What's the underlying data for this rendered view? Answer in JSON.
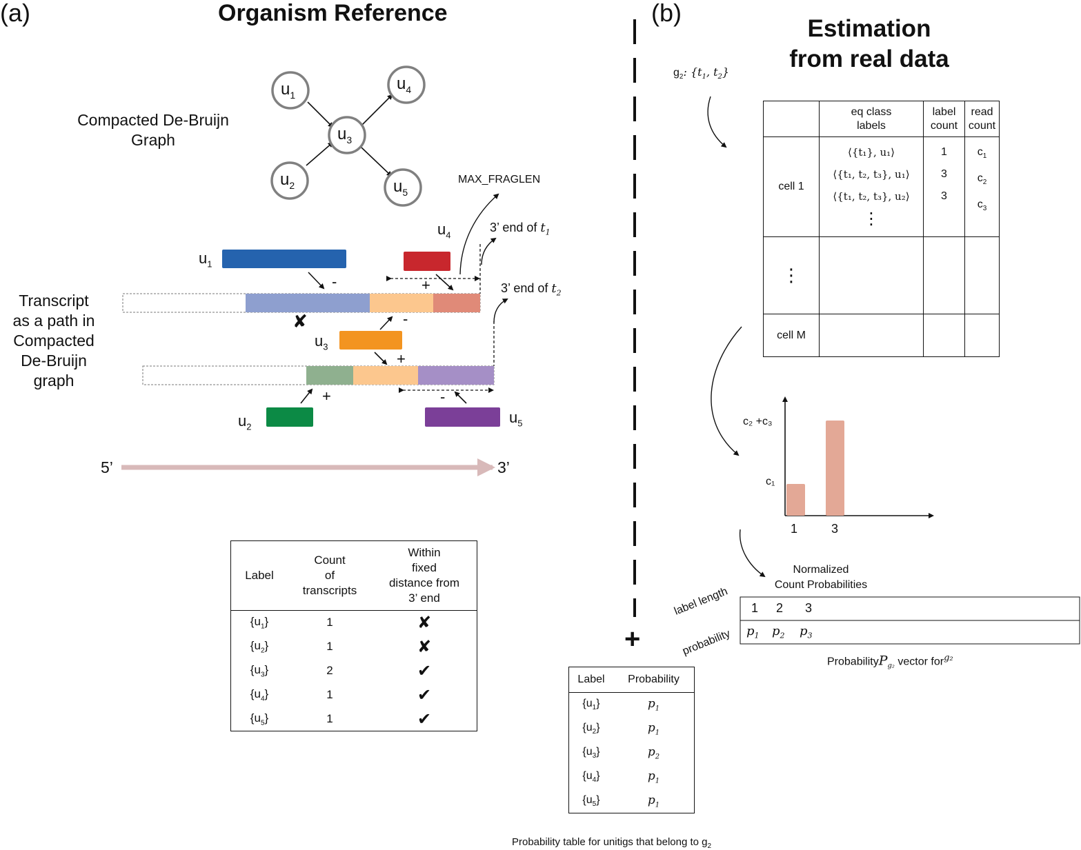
{
  "panel_a": {
    "label": "(a)",
    "title": "Organism Reference",
    "graph_caption_line1": "Compacted De-Bruijn",
    "graph_caption_line2": "Graph",
    "nodes": [
      {
        "id": "u1",
        "label": "u",
        "sub": "1"
      },
      {
        "id": "u2",
        "label": "u",
        "sub": "2"
      },
      {
        "id": "u3",
        "label": "u",
        "sub": "3"
      },
      {
        "id": "u4",
        "label": "u",
        "sub": "4"
      },
      {
        "id": "u5",
        "label": "u",
        "sub": "5"
      }
    ],
    "transcript_caption": [
      "Transcript",
      "as a path in",
      "Compacted",
      "De-Bruijn",
      "graph"
    ],
    "max_fraglen": "MAX_FRAGLEN",
    "end_t1": "3’ end of ",
    "end_t1_var": "t",
    "end_t1_sub": "1",
    "end_t2": "3’ end of ",
    "end_t2_var": "t",
    "end_t2_sub": "2",
    "unitig_labels": {
      "u1": {
        "label": "u",
        "sub": "1"
      },
      "u2": {
        "label": "u",
        "sub": "2"
      },
      "u3": {
        "label": "u",
        "sub": "3"
      },
      "u4": {
        "label": "u",
        "sub": "4"
      },
      "u5": {
        "label": "u",
        "sub": "5"
      }
    },
    "signs": {
      "u1": "-",
      "u4": "+",
      "u3_top": "-",
      "u3_bot": "+",
      "u2": "+",
      "u5": "-"
    },
    "cross_mark": "✘",
    "direction_start": "5’",
    "direction_end": "3’",
    "table": {
      "headers": {
        "label": "Label",
        "count": [
          "Count",
          "of",
          "transcripts"
        ],
        "within": [
          "Within",
          "fixed",
          "distance from",
          "3’ end"
        ]
      },
      "rows": [
        {
          "label": "{u",
          "sub": "1",
          "close": "}",
          "count": "1",
          "mark": "✘"
        },
        {
          "label": "{u",
          "sub": "2",
          "close": "}",
          "count": "1",
          "mark": "✘"
        },
        {
          "label": "{u",
          "sub": "3",
          "close": "}",
          "count": "2",
          "mark": "✔"
        },
        {
          "label": "{u",
          "sub": "4",
          "close": "}",
          "count": "1",
          "mark": "✔"
        },
        {
          "label": "{u",
          "sub": "5",
          "close": "}",
          "count": "1",
          "mark": "✔"
        }
      ]
    },
    "colors": {
      "u1": "#2563ae",
      "u1_light": "#8e9fcf",
      "u4": "#c8272d",
      "u4_light": "#e08a78",
      "u3": "#f39420",
      "u3_light": "#fcc78e",
      "u2": "#0c8a45",
      "u2_light": "#8fb08f",
      "u5": "#7b3f98",
      "u5_light": "#a58fc6",
      "node_stroke": "#808080",
      "direction_arrow": "#d8b9b9"
    }
  },
  "panel_b": {
    "label": "(b)",
    "title_line1": "Estimation",
    "title_line2": "from real data",
    "group": {
      "g": "g",
      "sub": "2",
      "rest": ": {t",
      "t1": "1",
      "sep": ", t",
      "t2": "2",
      "close": "}"
    },
    "table": {
      "headers": {
        "eq": [
          "eq class",
          "labels"
        ],
        "label_count": [
          "label",
          "count"
        ],
        "read_count": [
          "read",
          "count"
        ]
      },
      "cell1": "cell 1",
      "rows": [
        {
          "eq": "⟨{t₁}, u₁⟩",
          "count": "1",
          "read": "c",
          "read_sub": "1"
        },
        {
          "eq": "⟨{t₁, t₂, t₃}, u₁⟩",
          "count": "3",
          "read": "c",
          "read_sub": "2"
        },
        {
          "eq": "⟨{t₁, t₂, t₃}, u₂⟩",
          "count": "3",
          "read": "c",
          "read_sub": "3"
        }
      ],
      "vdots": "⋮",
      "mid_dots": "⋮",
      "cellM": "cell M"
    },
    "chart_data": {
      "type": "bar",
      "categories": [
        "1",
        "3"
      ],
      "values": [
        1,
        3
      ],
      "ytick_labels": [
        "c₁",
        "c₂ +c₃"
      ],
      "title": "",
      "xlabel": "",
      "ylabel": "",
      "bar_color": "#e3a896"
    },
    "normalized_title": [
      "Normalized",
      "Count Probabilities"
    ],
    "prob_vector": {
      "row1_label": "label length",
      "row2_label": "probability",
      "lengths": [
        "1",
        "2",
        "3"
      ],
      "probs": [
        {
          "p": "p",
          "sub": "1"
        },
        {
          "p": "p",
          "sub": "2"
        },
        {
          "p": "p",
          "sub": "3"
        }
      ],
      "caption_pre": "Probability",
      "caption_var": "P",
      "caption_var_sub": "g₂",
      "caption_mid": " vector for",
      "caption_g": "g₂"
    },
    "plus": "+",
    "prob_table": {
      "headers": {
        "label": "Label",
        "probability": "Probability"
      },
      "rows": [
        {
          "label": "{u",
          "sub": "1",
          "close": "}",
          "p": "p",
          "psub": "1"
        },
        {
          "label": "{u",
          "sub": "2",
          "close": "}",
          "p": "p",
          "psub": "1"
        },
        {
          "label": "{u",
          "sub": "3",
          "close": "}",
          "p": "p",
          "psub": "2"
        },
        {
          "label": "{u",
          "sub": "4",
          "close": "}",
          "p": "p",
          "psub": "1"
        },
        {
          "label": "{u",
          "sub": "5",
          "close": "}",
          "p": "p",
          "psub": "1"
        }
      ],
      "caption": "Probability table for unitigs that belong to g",
      "caption_sub": "2"
    }
  }
}
